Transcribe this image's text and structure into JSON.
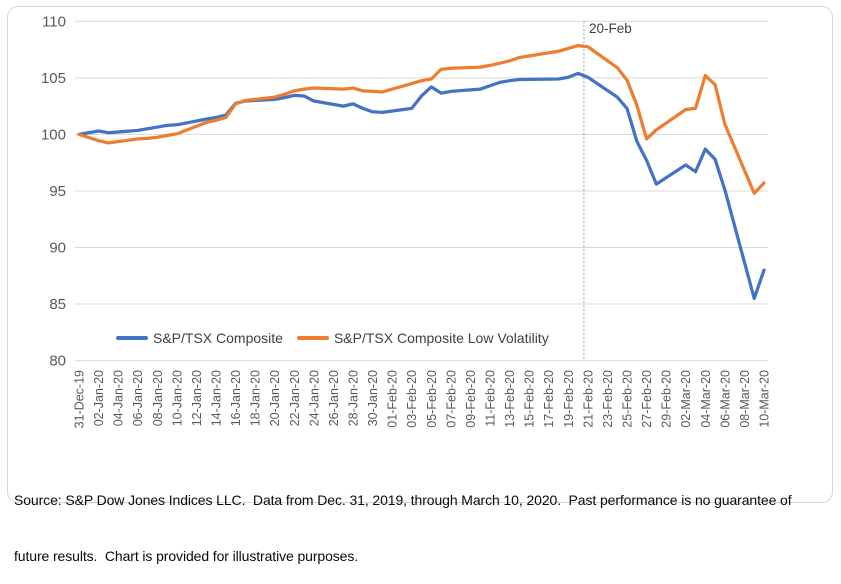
{
  "chart_data": {
    "type": "line",
    "title": "",
    "xlabel": "",
    "ylabel": "",
    "ylim": [
      80,
      110
    ],
    "grid": "horizontal",
    "legend_position": "bottom",
    "y_axis": {
      "ticks": [
        110,
        105,
        100,
        95,
        90,
        85,
        80
      ]
    },
    "x_axis": {
      "tick_step_days": 2,
      "tick_labels": [
        "31-Dec-19",
        "02-Jan-20",
        "04-Jan-20",
        "06-Jan-20",
        "08-Jan-20",
        "10-Jan-20",
        "12-Jan-20",
        "14-Jan-20",
        "16-Jan-20",
        "18-Jan-20",
        "20-Jan-20",
        "22-Jan-20",
        "24-Jan-20",
        "26-Jan-20",
        "28-Jan-20",
        "30-Jan-20",
        "01-Feb-20",
        "03-Feb-20",
        "05-Feb-20",
        "07-Feb-20",
        "09-Feb-20",
        "11-Feb-20",
        "13-Feb-20",
        "15-Feb-20",
        "17-Feb-20",
        "19-Feb-20",
        "21-Feb-20",
        "23-Feb-20",
        "25-Feb-20",
        "27-Feb-20",
        "29-Feb-20",
        "02-Mar-20",
        "04-Mar-20",
        "06-Mar-20",
        "08-Mar-20",
        "10-Mar-20"
      ]
    },
    "annotation": {
      "label": "20-Feb",
      "day_offset": 51.6,
      "style": "dotted-vertical-line"
    },
    "series": [
      {
        "name": "S&P/TSX Composite",
        "color": "#4472C4",
        "dates": [
          "31-Dec-19",
          "02-Jan-20",
          "03-Jan-20",
          "06-Jan-20",
          "07-Jan-20",
          "08-Jan-20",
          "09-Jan-20",
          "10-Jan-20",
          "13-Jan-20",
          "14-Jan-20",
          "15-Jan-20",
          "16-Jan-20",
          "17-Jan-20",
          "20-Jan-20",
          "21-Jan-20",
          "22-Jan-20",
          "23-Jan-20",
          "24-Jan-20",
          "27-Jan-20",
          "28-Jan-20",
          "29-Jan-20",
          "30-Jan-20",
          "31-Jan-20",
          "03-Feb-20",
          "04-Feb-20",
          "05-Feb-20",
          "06-Feb-20",
          "07-Feb-20",
          "10-Feb-20",
          "11-Feb-20",
          "12-Feb-20",
          "13-Feb-20",
          "14-Feb-20",
          "18-Feb-20",
          "19-Feb-20",
          "20-Feb-20",
          "21-Feb-20",
          "24-Feb-20",
          "25-Feb-20",
          "26-Feb-20",
          "27-Feb-20",
          "28-Feb-20",
          "02-Mar-20",
          "03-Mar-20",
          "04-Mar-20",
          "05-Mar-20",
          "06-Mar-20",
          "09-Mar-20",
          "10-Mar-20"
        ],
        "day_offsets": [
          0,
          2,
          3,
          6,
          7,
          8,
          9,
          10,
          13,
          14,
          15,
          16,
          17,
          20,
          21,
          22,
          23,
          24,
          27,
          28,
          29,
          30,
          31,
          34,
          35,
          36,
          37,
          38,
          41,
          42,
          43,
          44,
          45,
          49,
          50,
          51,
          52,
          55,
          56,
          57,
          58,
          59,
          62,
          63,
          64,
          65,
          66,
          69,
          70
        ],
        "values": [
          100.0,
          100.3,
          100.15,
          100.35,
          100.5,
          100.65,
          100.8,
          100.85,
          101.35,
          101.5,
          101.7,
          102.75,
          102.95,
          103.1,
          103.25,
          103.45,
          103.4,
          102.95,
          102.5,
          102.7,
          102.3,
          102.0,
          101.95,
          102.3,
          103.4,
          104.2,
          103.65,
          103.8,
          104.0,
          104.3,
          104.6,
          104.75,
          104.85,
          104.9,
          105.05,
          105.4,
          105.05,
          103.3,
          102.3,
          99.4,
          97.7,
          95.6,
          97.3,
          96.7,
          98.7,
          97.8,
          95.1,
          85.5,
          88.0
        ]
      },
      {
        "name": "S&P/TSX Composite Low Volatility",
        "color": "#ED7D31",
        "dates": [
          "31-Dec-19",
          "02-Jan-20",
          "03-Jan-20",
          "06-Jan-20",
          "07-Jan-20",
          "08-Jan-20",
          "09-Jan-20",
          "10-Jan-20",
          "13-Jan-20",
          "14-Jan-20",
          "15-Jan-20",
          "16-Jan-20",
          "17-Jan-20",
          "20-Jan-20",
          "21-Jan-20",
          "22-Jan-20",
          "23-Jan-20",
          "24-Jan-20",
          "27-Jan-20",
          "28-Jan-20",
          "29-Jan-20",
          "30-Jan-20",
          "31-Jan-20",
          "03-Feb-20",
          "04-Feb-20",
          "05-Feb-20",
          "06-Feb-20",
          "07-Feb-20",
          "10-Feb-20",
          "11-Feb-20",
          "12-Feb-20",
          "13-Feb-20",
          "14-Feb-20",
          "18-Feb-20",
          "19-Feb-20",
          "20-Feb-20",
          "21-Feb-20",
          "24-Feb-20",
          "25-Feb-20",
          "26-Feb-20",
          "27-Feb-20",
          "28-Feb-20",
          "02-Mar-20",
          "03-Mar-20",
          "04-Mar-20",
          "05-Mar-20",
          "06-Mar-20",
          "09-Mar-20",
          "10-Mar-20"
        ],
        "day_offsets": [
          0,
          2,
          3,
          6,
          7,
          8,
          9,
          10,
          13,
          14,
          15,
          16,
          17,
          20,
          21,
          22,
          23,
          24,
          27,
          28,
          29,
          30,
          31,
          34,
          35,
          36,
          37,
          38,
          41,
          42,
          43,
          44,
          45,
          49,
          50,
          51,
          52,
          55,
          56,
          57,
          58,
          59,
          62,
          63,
          64,
          65,
          66,
          69,
          70
        ],
        "values": [
          100.0,
          99.45,
          99.25,
          99.6,
          99.65,
          99.75,
          99.9,
          100.05,
          101.05,
          101.25,
          101.5,
          102.7,
          103.0,
          103.3,
          103.55,
          103.85,
          104.0,
          104.1,
          104.0,
          104.1,
          103.85,
          103.8,
          103.75,
          104.5,
          104.75,
          104.9,
          105.75,
          105.85,
          105.95,
          106.1,
          106.3,
          106.5,
          106.8,
          107.35,
          107.6,
          107.85,
          107.75,
          105.9,
          104.8,
          102.6,
          99.6,
          100.4,
          102.2,
          102.3,
          105.2,
          104.4,
          100.9,
          94.8,
          95.7
        ]
      }
    ],
    "style": {
      "grid_color": "#d9d9d9",
      "axis_text_color": "#595959",
      "annotation_line_color": "#9b9b9b"
    }
  },
  "legend": {
    "items": [
      {
        "label": "S&P/TSX Composite",
        "color": "#4472C4"
      },
      {
        "label": "S&P/TSX Composite Low Volatility",
        "color": "#ED7D31"
      }
    ]
  },
  "footer": {
    "line1": "Source: S&P Dow Jones Indices LLC.  Data from Dec. 31, 2019, through March 10, 2020.  Past performance is no guarantee of",
    "line2": "future results.  Chart is provided for illustrative purposes."
  }
}
